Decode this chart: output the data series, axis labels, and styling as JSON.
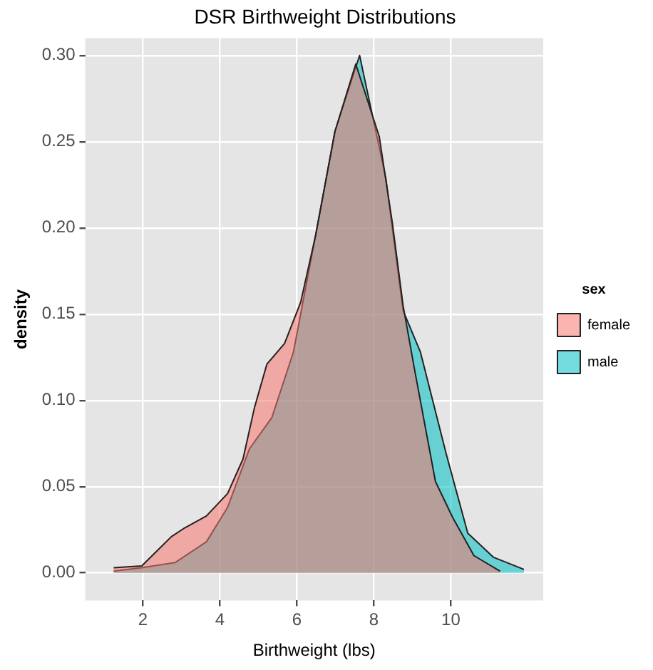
{
  "chart_data": {
    "type": "area",
    "title": "DSR Birthweight Distributions",
    "xlabel": "Birthweight (lbs)",
    "ylabel": "density",
    "legend_title": "sex",
    "legend": "right",
    "grid": true,
    "xlim": [
      0.5,
      12.4
    ],
    "xticks": [
      2,
      4,
      6,
      8,
      10
    ],
    "ylim": [
      -0.016,
      0.31
    ],
    "yticks": [
      {
        "value": 0,
        "label": "0.00"
      },
      {
        "value": 0.05,
        "label": "0.05"
      },
      {
        "value": 0.1,
        "label": "0.10"
      },
      {
        "value": 0.15,
        "label": "0.15"
      },
      {
        "value": 0.2,
        "label": "0.20"
      },
      {
        "value": 0.25,
        "label": "0.25"
      },
      {
        "value": 0.3,
        "label": "0.30"
      }
    ],
    "series": [
      {
        "name": "female",
        "color": "#f8766d",
        "x": [
          1.24,
          1.97,
          2.74,
          3.08,
          3.65,
          4.2,
          4.6,
          4.9,
          5.22,
          5.68,
          6.1,
          6.49,
          6.99,
          7.53,
          8.14,
          8.48,
          8.76,
          9.04,
          9.6,
          10.05,
          10.6,
          11.28
        ],
        "values": [
          0.003,
          0.004,
          0.021,
          0.026,
          0.033,
          0.046,
          0.066,
          0.096,
          0.121,
          0.133,
          0.157,
          0.196,
          0.256,
          0.295,
          0.253,
          0.203,
          0.155,
          0.12,
          0.053,
          0.032,
          0.01,
          0.001
        ]
      },
      {
        "name": "male",
        "color": "#00bfc4",
        "x": [
          1.24,
          1.97,
          2.84,
          3.65,
          4.2,
          4.77,
          5.35,
          5.91,
          6.49,
          6.99,
          7.63,
          8.31,
          8.76,
          9.21,
          9.88,
          10.44,
          11.11,
          11.9
        ],
        "values": [
          0.001,
          0.003,
          0.006,
          0.018,
          0.038,
          0.072,
          0.09,
          0.128,
          0.196,
          0.256,
          0.3,
          0.229,
          0.152,
          0.128,
          0.069,
          0.023,
          0.009,
          0.002
        ]
      }
    ]
  }
}
